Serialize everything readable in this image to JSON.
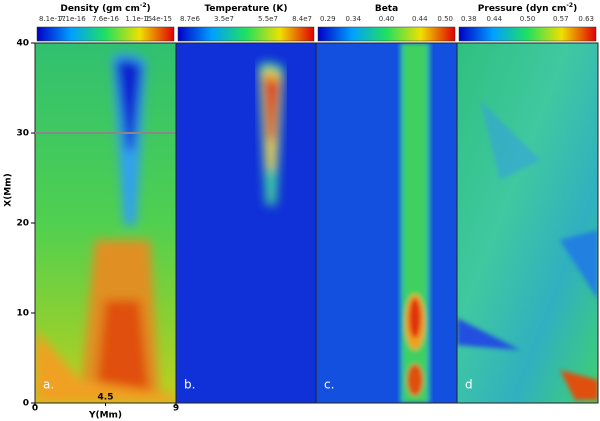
{
  "figure": {
    "y_axis": {
      "label": "X(Mm)",
      "lim": [
        0,
        40
      ],
      "ticks": [
        0,
        10,
        20,
        30,
        40
      ]
    },
    "x_axis": {
      "label": "Y(Mm)",
      "lim": [
        0,
        9
      ],
      "ticks": [
        0,
        4.5,
        9
      ]
    },
    "panels": [
      {
        "title": "Density (gm cm",
        "title_sup": "-2",
        "title_end": ")",
        "colorbar_labels": [
          "8.1e-17",
          "7.1e-16",
          "7.6e-16",
          "1.1e-15",
          "1.4e-15"
        ],
        "label": "a.",
        "reference_line": 30
      },
      {
        "title": "Temperature (K)",
        "colorbar_labels": [
          "8.7e6",
          "3.5e7",
          "5.5e7",
          "8.4e7"
        ],
        "label": "b."
      },
      {
        "title": "Beta",
        "colorbar_labels": [
          "0.29",
          "0.34",
          "0.40",
          "0.44",
          "0.50"
        ],
        "label": "c."
      },
      {
        "title": "Pressure (dyn cm",
        "title_sup": "-2",
        "title_end": ")",
        "colorbar_labels": [
          "0.38",
          "0.44",
          "0.50",
          "0.57",
          "0.63"
        ],
        "label": "d"
      }
    ]
  }
}
